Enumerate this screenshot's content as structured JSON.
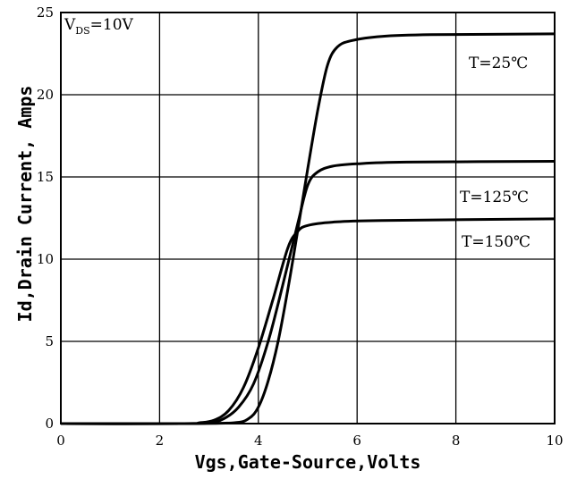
{
  "chart_data": {
    "type": "line",
    "title": "",
    "condition": {
      "main": "V",
      "sub": "DS",
      "rest": "=10V"
    },
    "xlabel": "Vgs,Gate-Source,Volts",
    "ylabel": "Id,Drain Current, Amps",
    "xlim": [
      0,
      10
    ],
    "ylim": [
      0,
      25
    ],
    "xticks": [
      0,
      2,
      4,
      6,
      8,
      10
    ],
    "yticks": [
      0,
      5,
      10,
      15,
      20,
      25
    ],
    "xtick_labels": [
      "0",
      "2",
      "4",
      "6",
      "8",
      "10"
    ],
    "ytick_labels": [
      "0",
      "5",
      "10",
      "15",
      "20",
      "25"
    ],
    "grid": true,
    "series": [
      {
        "name": "T=25℃",
        "points": [
          [
            0,
            0
          ],
          [
            2.5,
            0
          ],
          [
            3.5,
            0.05
          ],
          [
            3.8,
            0.3
          ],
          [
            4.0,
            1.0
          ],
          [
            4.2,
            2.6
          ],
          [
            4.4,
            5.0
          ],
          [
            4.6,
            8.2
          ],
          [
            4.8,
            11.8
          ],
          [
            5.0,
            15.5
          ],
          [
            5.2,
            19.0
          ],
          [
            5.4,
            21.8
          ],
          [
            5.6,
            22.9
          ],
          [
            5.9,
            23.3
          ],
          [
            6.5,
            23.55
          ],
          [
            7.5,
            23.65
          ],
          [
            10,
            23.7
          ]
        ]
      },
      {
        "name": "T=125℃",
        "points": [
          [
            0,
            0
          ],
          [
            2.5,
            0
          ],
          [
            3.0,
            0.05
          ],
          [
            3.3,
            0.3
          ],
          [
            3.6,
            1.0
          ],
          [
            3.9,
            2.4
          ],
          [
            4.2,
            5.0
          ],
          [
            4.5,
            8.5
          ],
          [
            4.8,
            12.2
          ],
          [
            5.0,
            14.5
          ],
          [
            5.2,
            15.3
          ],
          [
            5.5,
            15.65
          ],
          [
            6.0,
            15.8
          ],
          [
            7.0,
            15.9
          ],
          [
            10,
            15.95
          ]
        ]
      },
      {
        "name": "T=150℃",
        "points": [
          [
            0,
            0
          ],
          [
            2.5,
            0
          ],
          [
            2.8,
            0.05
          ],
          [
            3.1,
            0.2
          ],
          [
            3.4,
            0.8
          ],
          [
            3.7,
            2.2
          ],
          [
            4.0,
            4.6
          ],
          [
            4.3,
            7.6
          ],
          [
            4.6,
            10.7
          ],
          [
            4.8,
            11.7
          ],
          [
            5.0,
            12.05
          ],
          [
            5.5,
            12.25
          ],
          [
            6.5,
            12.35
          ],
          [
            10,
            12.45
          ]
        ]
      }
    ],
    "curve_labels": [
      "T=25℃",
      "T=125℃",
      "T=150℃"
    ]
  }
}
